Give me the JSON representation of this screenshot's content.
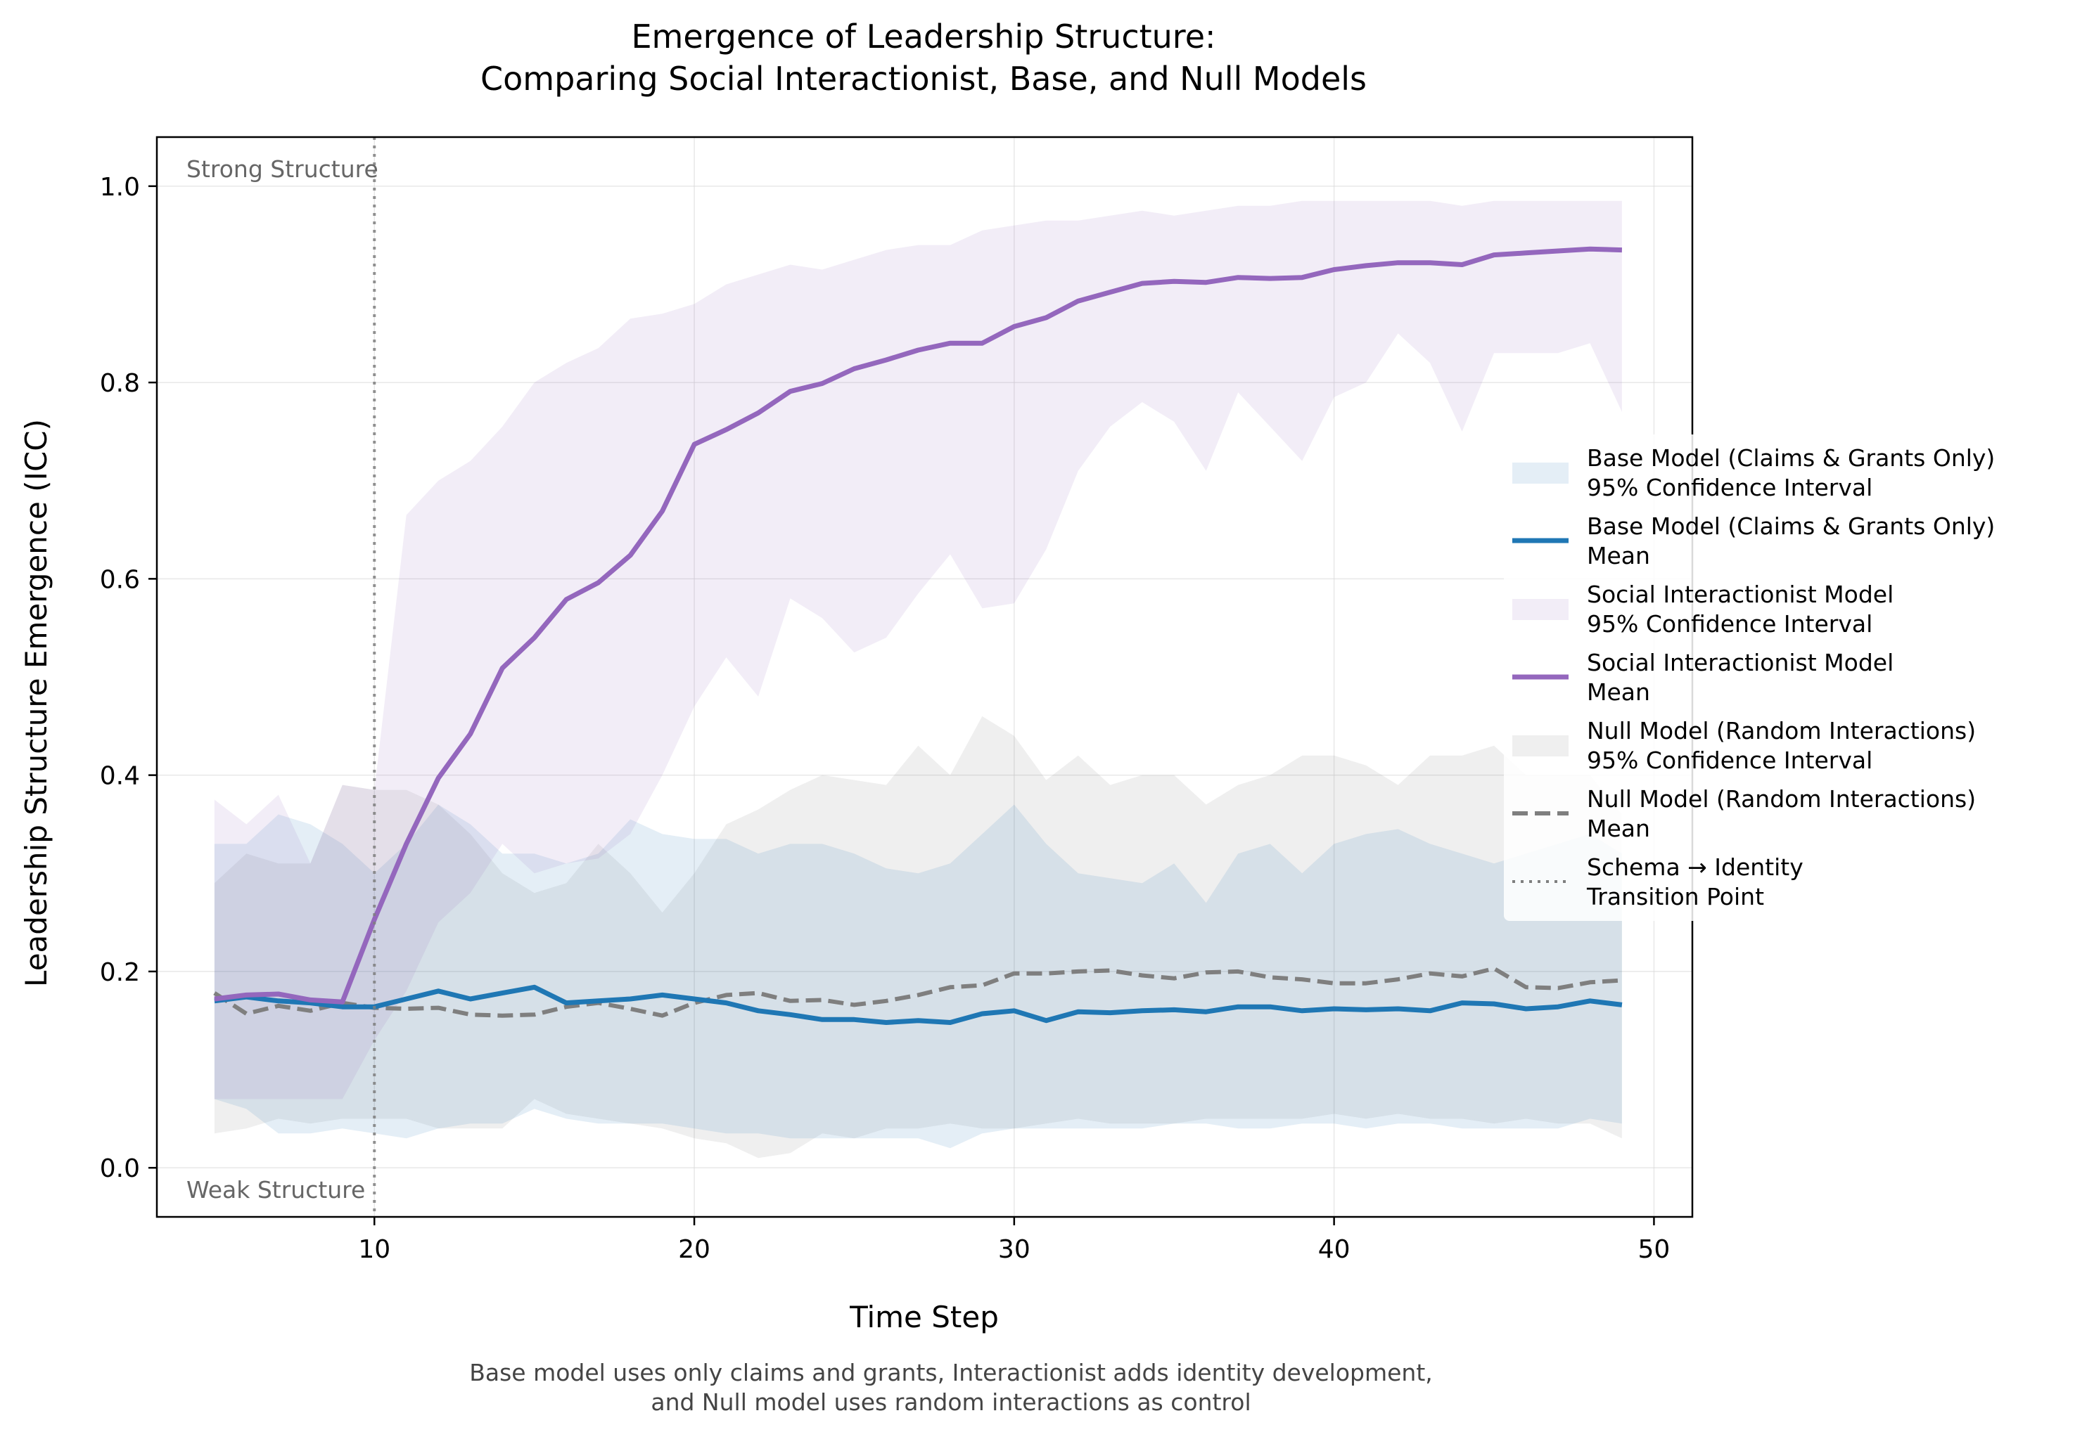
{
  "chart_data": {
    "type": "line",
    "title_lines": [
      "Emergence of Leadership Structure:",
      "Comparing Social Interactionist, Base, and Null Models"
    ],
    "xlabel": "Time Step",
    "ylabel": "Leadership Structure Emergence (ICC)",
    "xlim": [
      3.2,
      51.2
    ],
    "ylim": [
      -0.05,
      1.05
    ],
    "xticks": [
      10,
      20,
      30,
      40,
      50
    ],
    "yticks": [
      0.0,
      0.2,
      0.4,
      0.6,
      0.8,
      1.0
    ],
    "ytick_labels": [
      "0.0",
      "0.2",
      "0.4",
      "0.6",
      "0.8",
      "1.0"
    ],
    "grid": true,
    "legend_position": "right",
    "x": [
      5,
      6,
      7,
      8,
      9,
      10,
      11,
      12,
      13,
      14,
      15,
      16,
      17,
      18,
      19,
      20,
      21,
      22,
      23,
      24,
      25,
      26,
      27,
      28,
      29,
      30,
      31,
      32,
      33,
      34,
      35,
      36,
      37,
      38,
      39,
      40,
      41,
      42,
      43,
      44,
      45,
      46,
      47,
      48,
      49
    ],
    "series": [
      {
        "key": "base",
        "name": "Base Model (Claims & Grants Only)",
        "color": "#1f77b4",
        "style": "solid",
        "mean": [
          0.17,
          0.174,
          0.17,
          0.168,
          0.164,
          0.164,
          0.172,
          0.18,
          0.172,
          0.178,
          0.184,
          0.168,
          0.17,
          0.172,
          0.176,
          0.172,
          0.168,
          0.16,
          0.156,
          0.151,
          0.151,
          0.148,
          0.15,
          0.148,
          0.157,
          0.16,
          0.15,
          0.159,
          0.158,
          0.16,
          0.161,
          0.159,
          0.164,
          0.164,
          0.16,
          0.162,
          0.161,
          0.162,
          0.16,
          0.168,
          0.167,
          0.162,
          0.164,
          0.17,
          0.166
        ],
        "ci_upper": [
          0.33,
          0.33,
          0.36,
          0.35,
          0.33,
          0.3,
          0.33,
          0.37,
          0.35,
          0.32,
          0.32,
          0.31,
          0.32,
          0.355,
          0.34,
          0.335,
          0.335,
          0.32,
          0.33,
          0.33,
          0.32,
          0.305,
          0.3,
          0.31,
          0.34,
          0.37,
          0.33,
          0.3,
          0.295,
          0.29,
          0.31,
          0.27,
          0.32,
          0.33,
          0.3,
          0.33,
          0.34,
          0.345,
          0.33,
          0.32,
          0.31,
          0.32,
          0.33,
          0.34,
          0.32
        ],
        "ci_lower": [
          0.07,
          0.06,
          0.035,
          0.035,
          0.04,
          0.035,
          0.03,
          0.04,
          0.045,
          0.045,
          0.06,
          0.05,
          0.045,
          0.045,
          0.045,
          0.04,
          0.035,
          0.035,
          0.03,
          0.03,
          0.03,
          0.03,
          0.03,
          0.02,
          0.035,
          0.04,
          0.04,
          0.04,
          0.04,
          0.04,
          0.045,
          0.045,
          0.04,
          0.04,
          0.045,
          0.045,
          0.04,
          0.045,
          0.045,
          0.04,
          0.04,
          0.04,
          0.04,
          0.05,
          0.045
        ]
      },
      {
        "key": "social",
        "name": "Social Interactionist Model",
        "color": "#9467bd",
        "style": "solid",
        "mean": [
          0.172,
          0.176,
          0.177,
          0.171,
          0.169,
          0.253,
          0.33,
          0.397,
          0.442,
          0.509,
          0.54,
          0.579,
          0.596,
          0.624,
          0.669,
          0.737,
          0.752,
          0.769,
          0.791,
          0.799,
          0.814,
          0.823,
          0.833,
          0.84,
          0.84,
          0.857,
          0.866,
          0.883,
          0.892,
          0.901,
          0.903,
          0.902,
          0.907,
          0.906,
          0.907,
          0.915,
          0.919,
          0.922,
          0.922,
          0.92,
          0.93,
          0.932,
          0.934,
          0.936,
          0.935
        ],
        "ci_upper": [
          0.375,
          0.35,
          0.38,
          0.31,
          0.39,
          0.385,
          0.665,
          0.7,
          0.72,
          0.755,
          0.8,
          0.82,
          0.835,
          0.865,
          0.87,
          0.88,
          0.9,
          0.91,
          0.92,
          0.915,
          0.925,
          0.935,
          0.94,
          0.94,
          0.955,
          0.96,
          0.965,
          0.965,
          0.97,
          0.975,
          0.97,
          0.975,
          0.98,
          0.98,
          0.985,
          0.985,
          0.985,
          0.985,
          0.985,
          0.98,
          0.985,
          0.985,
          0.985,
          0.985,
          0.985
        ],
        "ci_lower": [
          0.07,
          0.07,
          0.07,
          0.07,
          0.07,
          0.13,
          0.18,
          0.25,
          0.28,
          0.33,
          0.3,
          0.31,
          0.315,
          0.34,
          0.4,
          0.47,
          0.52,
          0.48,
          0.58,
          0.56,
          0.525,
          0.54,
          0.585,
          0.625,
          0.57,
          0.575,
          0.63,
          0.71,
          0.755,
          0.78,
          0.76,
          0.71,
          0.79,
          0.755,
          0.72,
          0.785,
          0.8,
          0.85,
          0.82,
          0.75,
          0.83,
          0.83,
          0.83,
          0.84,
          0.77
        ]
      },
      {
        "key": "null",
        "name": "Null Model (Random Interactions)",
        "color": "#7f7f7f",
        "style": "dashed",
        "mean": [
          0.178,
          0.157,
          0.165,
          0.16,
          0.168,
          0.163,
          0.162,
          0.163,
          0.156,
          0.155,
          0.156,
          0.164,
          0.168,
          0.162,
          0.155,
          0.168,
          0.176,
          0.178,
          0.17,
          0.171,
          0.166,
          0.17,
          0.176,
          0.184,
          0.186,
          0.198,
          0.198,
          0.2,
          0.201,
          0.196,
          0.193,
          0.199,
          0.2,
          0.194,
          0.192,
          0.188,
          0.188,
          0.192,
          0.198,
          0.195,
          0.203,
          0.184,
          0.183,
          0.189,
          0.191
        ],
        "ci_upper": [
          0.29,
          0.32,
          0.31,
          0.31,
          0.39,
          0.385,
          0.385,
          0.37,
          0.34,
          0.3,
          0.28,
          0.29,
          0.33,
          0.3,
          0.26,
          0.3,
          0.35,
          0.365,
          0.385,
          0.4,
          0.395,
          0.39,
          0.43,
          0.4,
          0.46,
          0.44,
          0.395,
          0.42,
          0.39,
          0.4,
          0.4,
          0.37,
          0.39,
          0.4,
          0.42,
          0.42,
          0.41,
          0.39,
          0.42,
          0.42,
          0.43,
          0.4,
          0.4,
          0.4,
          0.36
        ],
        "ci_lower": [
          0.035,
          0.04,
          0.05,
          0.045,
          0.05,
          0.05,
          0.05,
          0.04,
          0.04,
          0.04,
          0.07,
          0.055,
          0.05,
          0.045,
          0.04,
          0.03,
          0.025,
          0.01,
          0.015,
          0.035,
          0.03,
          0.04,
          0.04,
          0.045,
          0.04,
          0.04,
          0.045,
          0.05,
          0.045,
          0.045,
          0.045,
          0.05,
          0.05,
          0.05,
          0.05,
          0.055,
          0.05,
          0.055,
          0.05,
          0.05,
          0.045,
          0.05,
          0.045,
          0.045,
          0.03
        ]
      }
    ],
    "transition_x": 10,
    "annotations": {
      "strong": "Strong Structure",
      "weak": "Weak Structure"
    },
    "legend_entries": [
      {
        "kind": "ci",
        "series": "base",
        "line1": "Base Model (Claims & Grants Only)",
        "line2": "95% Confidence Interval"
      },
      {
        "kind": "mean",
        "series": "base",
        "line1": "Base Model (Claims & Grants Only)",
        "line2": "Mean"
      },
      {
        "kind": "ci",
        "series": "social",
        "line1": "Social Interactionist Model",
        "line2": "95% Confidence Interval"
      },
      {
        "kind": "mean",
        "series": "social",
        "line1": "Social Interactionist Model",
        "line2": "Mean"
      },
      {
        "kind": "ci",
        "series": "null",
        "line1": "Null Model (Random Interactions)",
        "line2": "95% Confidence Interval"
      },
      {
        "kind": "mean",
        "series": "null",
        "line1": "Null Model (Random Interactions)",
        "line2": "Mean"
      },
      {
        "kind": "transition",
        "series": "",
        "line1": "Schema → Identity",
        "line2": "Transition Point"
      }
    ],
    "caption_lines": [
      "Base model uses only claims and grants, Interactionist adds identity development,",
      "and Null model uses random interactions as control"
    ]
  }
}
